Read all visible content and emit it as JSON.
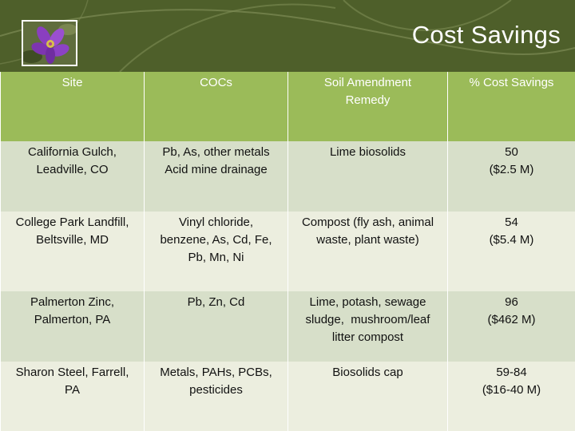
{
  "slide": {
    "title": "Cost Savings"
  },
  "table": {
    "headers": [
      "Site",
      "COCs",
      "Soil Amendment Remedy",
      "% Cost Savings"
    ],
    "rows": [
      {
        "site": [
          "California Gulch,",
          "Leadville, CO"
        ],
        "cocs": [
          "Pb, As, other metals",
          "Acid mine drainage"
        ],
        "remedy": [
          "Lime biosolids"
        ],
        "savings": [
          "50",
          "($2.5 M)"
        ]
      },
      {
        "site": [
          "College Park Landfill,",
          "Beltsville, MD"
        ],
        "cocs": [
          "Vinyl chloride,",
          "benzene, As, Cd, Fe,",
          "Pb, Mn, Ni"
        ],
        "remedy": [
          "Compost (fly ash, animal",
          "waste, plant waste)"
        ],
        "savings": [
          "54",
          "($5.4 M)"
        ]
      },
      {
        "site": [
          "Palmerton Zinc,",
          "Palmerton, PA"
        ],
        "cocs": [
          "Pb, Zn, Cd"
        ],
        "remedy": [
          "Lime, potash, sewage",
          "sludge,  mushroom/leaf",
          "litter compost"
        ],
        "savings": [
          "96",
          "($462 M)"
        ]
      },
      {
        "site": [
          "Sharon Steel, Farrell,",
          "PA"
        ],
        "cocs": [
          "Metals, PAHs, PCBs,",
          "pesticides"
        ],
        "remedy": [
          "Biosolids cap"
        ],
        "savings": [
          "59-84",
          "($16-40 M)"
        ]
      }
    ]
  },
  "colors": {
    "banner": "#4e5f2a",
    "header": "#9bbb59",
    "row_dark": "#d7dfc9",
    "row_light": "#eceedf"
  }
}
